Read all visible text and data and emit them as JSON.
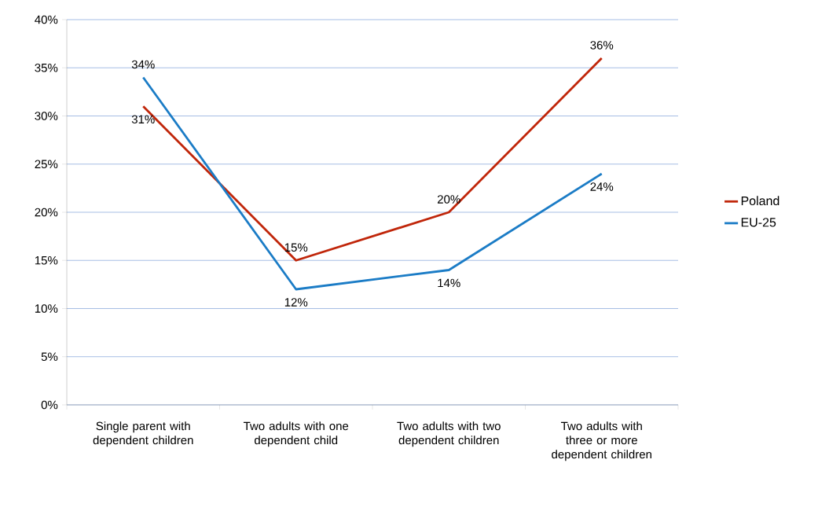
{
  "chart_data": {
    "type": "line",
    "categories": [
      "Single parent with dependent children",
      "Two adults with one dependent child",
      "Two adults with two dependent children",
      "Two adults with three or more dependent children"
    ],
    "series": [
      {
        "name": "Poland",
        "color": "#c0260a",
        "values": [
          31,
          15,
          20,
          36
        ],
        "value_labels": [
          "31%",
          "15%",
          "20%",
          "36%"
        ]
      },
      {
        "name": "EU-25",
        "color": "#1b7cc6",
        "values": [
          34,
          12,
          14,
          24
        ],
        "value_labels": [
          "34%",
          "12%",
          "14%",
          "24%"
        ]
      }
    ],
    "ylim": [
      0,
      40
    ],
    "yticks": [
      {
        "value": 0,
        "label": "0%"
      },
      {
        "value": 5,
        "label": "5%"
      },
      {
        "value": 10,
        "label": "10%"
      },
      {
        "value": 15,
        "label": "15%"
      },
      {
        "value": 20,
        "label": "20%"
      },
      {
        "value": 25,
        "label": "25%"
      },
      {
        "value": 30,
        "label": "30%"
      },
      {
        "value": 35,
        "label": "35%"
      },
      {
        "value": 40,
        "label": "40%"
      }
    ],
    "grid": "y",
    "legend": "right",
    "line_style": "solid"
  }
}
